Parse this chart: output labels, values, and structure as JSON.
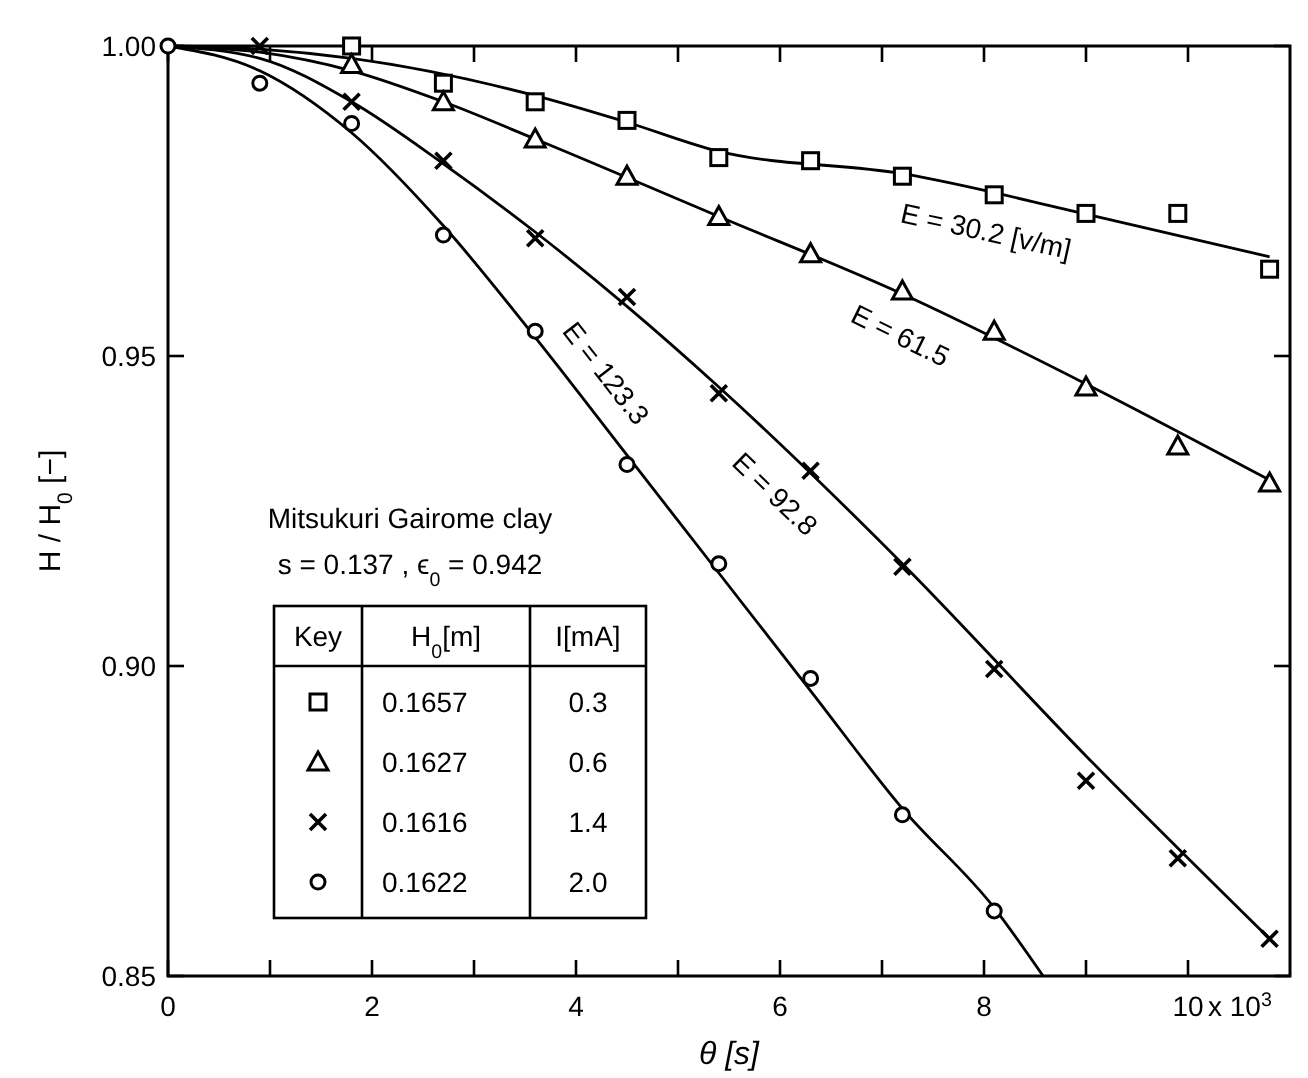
{
  "chart_data": {
    "type": "scatter",
    "xlabel": "θ [s]",
    "ylabel": "H / H$_{0}$ [−]",
    "xlim": [
      0,
      11
    ],
    "ylim": [
      0.85,
      1.0
    ],
    "xticks": [
      0,
      {
        "value": 1,
        "label": null
      },
      2,
      {
        "value": 3,
        "label": null
      },
      4,
      {
        "value": 5,
        "label": null
      },
      6,
      {
        "value": 7,
        "label": null
      },
      8,
      {
        "value": 9,
        "label": null
      },
      10
    ],
    "yticks": [
      {
        "value": 0.85,
        "label": "0.85"
      },
      {
        "value": 0.9,
        "label": "0.90"
      },
      {
        "value": 0.95,
        "label": "0.95"
      },
      {
        "value": 1.0,
        "label": "1.00"
      }
    ],
    "legend": "bottom left",
    "grid": false,
    "legend_title": "Key",
    "series": [
      {
        "name": "0.1657",
        "color": "#000000",
        "marker": "square",
        "x": [
          1.8,
          2.7,
          3.6,
          4.5,
          5.4,
          6.3,
          7.2,
          8.1,
          9.0,
          9.9,
          10.8
        ],
        "values": [
          1.0,
          0.994,
          0.991,
          0.988,
          0.982,
          0.9815,
          0.979,
          0.976,
          0.973,
          0.973,
          0.964
        ]
      },
      {
        "name": "0.1627",
        "color": "#000000",
        "marker": "triangle",
        "x": [
          1.8,
          2.7,
          3.6,
          4.5,
          5.4,
          6.3,
          7.2,
          8.1,
          9.0,
          9.9,
          10.8
        ],
        "values": [
          0.997,
          0.991,
          0.985,
          0.979,
          0.9725,
          0.9665,
          0.9605,
          0.954,
          0.945,
          0.9355,
          0.9295
        ]
      },
      {
        "name": "0.1616",
        "color": "#000000",
        "marker": "cross",
        "x": [
          0.9,
          1.8,
          2.7,
          3.6,
          4.5,
          5.4,
          6.3,
          7.2,
          8.1,
          9.0,
          9.9,
          10.8
        ],
        "values": [
          1.0,
          0.991,
          0.9815,
          0.969,
          0.9595,
          0.944,
          0.9315,
          0.916,
          0.8995,
          0.8815,
          0.869,
          0.856
        ]
      },
      {
        "name": "0.1622",
        "color": "#000000",
        "marker": "circle",
        "x": [
          0,
          0.9,
          1.8,
          2.7,
          3.6,
          4.5,
          5.4,
          6.3,
          7.2,
          8.1
        ],
        "values": [
          1.0,
          0.994,
          0.9875,
          0.9695,
          0.954,
          0.9325,
          0.9165,
          0.898,
          0.876,
          0.8605
        ]
      },
      {
        "type": "line",
        "color": "#000000",
        "x": [
          0,
          0.9,
          1.8,
          3.6,
          4.5,
          5.4,
          7.2,
          9.0,
          10.8
        ],
        "values": [
          1.0,
          0.9995,
          0.998,
          0.992,
          0.9877,
          0.983,
          0.9794,
          0.9729,
          0.966
        ]
      },
      {
        "type": "line",
        "color": "#000000",
        "x": [
          0,
          0.9,
          1.8,
          2.7,
          3.6,
          5.4,
          7.2,
          9.0,
          10.8
        ],
        "values": [
          1.0,
          0.999,
          0.996,
          0.991,
          0.985,
          0.9725,
          0.96,
          0.9455,
          0.93
        ]
      },
      {
        "type": "line",
        "color": "#000000",
        "x": [
          0,
          0.9,
          1.8,
          2.7,
          3.6,
          4.5,
          5.4,
          7.2,
          9.0,
          10.8
        ],
        "values": [
          1.0,
          0.998,
          0.991,
          0.981,
          0.97,
          0.958,
          0.945,
          0.9165,
          0.8855,
          0.856
        ]
      },
      {
        "type": "line",
        "color": "#000000",
        "x": [
          0,
          0.9,
          1.8,
          2.7,
          3.6,
          4.5,
          5.4,
          6.3,
          7.2,
          8.1,
          8.58
        ],
        "values": [
          1.0,
          0.996,
          0.986,
          0.971,
          0.953,
          0.934,
          0.915,
          0.896,
          0.877,
          0.861,
          0.85
        ]
      }
    ],
    "annotations": [
      "E = 30.2 [v/m]",
      "E = 61.5",
      "E = 92.8",
      "E = 123.3",
      "x 10$^{3}$",
      "Mitsukuri Gairome clay",
      "s = 0.137 , ϵ$_{0}$ = 0.942",
      "H$_{0}$[m]",
      "I[mA]",
      "0.3",
      "0.6",
      "1.4",
      "2.0"
    ]
  }
}
